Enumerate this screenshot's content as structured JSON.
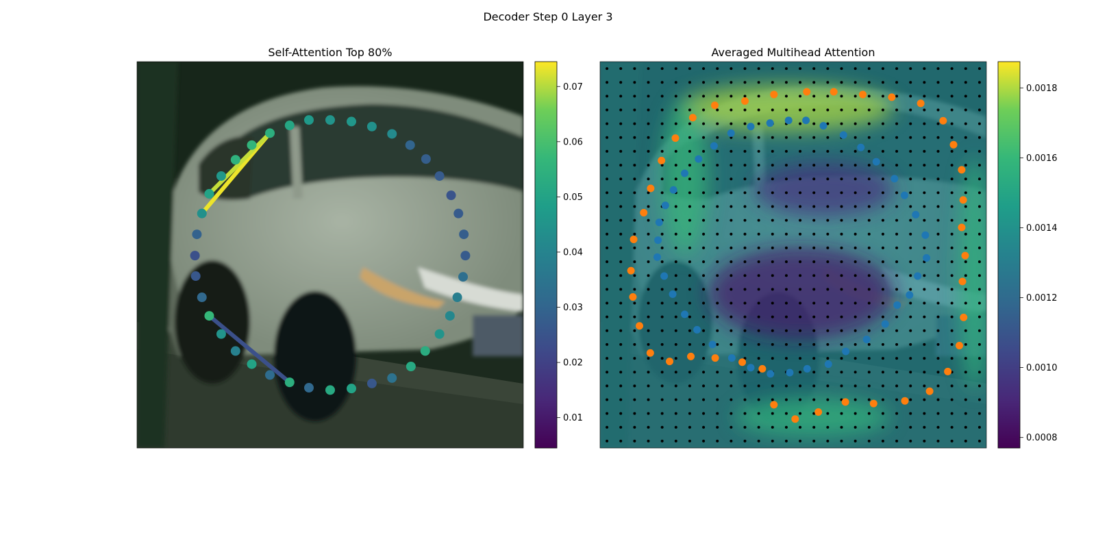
{
  "figure": {
    "title": "Decoder Step 0 Layer 3"
  },
  "chart_data": [
    {
      "type": "scatter",
      "title": "Self-Attention Top 80%",
      "background": "photo-car",
      "colormap": "viridis",
      "colorbar": {
        "range": [
          0.0045,
          0.0745
        ],
        "ticks": [
          0.01,
          0.02,
          0.03,
          0.04,
          0.05,
          0.06,
          0.07
        ],
        "tick_labels": [
          "0.01",
          "0.02",
          "0.03",
          "0.04",
          "0.05",
          "0.06",
          "0.07"
        ]
      },
      "xlim": [
        0,
        100
      ],
      "ylim": [
        100,
        0
      ],
      "points": [
        {
          "x": 50.0,
          "y": 15.1,
          "v": 0.045
        },
        {
          "x": 55.5,
          "y": 15.5,
          "v": 0.046
        },
        {
          "x": 60.8,
          "y": 16.8,
          "v": 0.044
        },
        {
          "x": 66.0,
          "y": 18.7,
          "v": 0.042
        },
        {
          "x": 70.7,
          "y": 21.6,
          "v": 0.03
        },
        {
          "x": 74.8,
          "y": 25.2,
          "v": 0.028
        },
        {
          "x": 78.3,
          "y": 29.6,
          "v": 0.027
        },
        {
          "x": 81.3,
          "y": 34.6,
          "v": 0.025
        },
        {
          "x": 83.2,
          "y": 39.3,
          "v": 0.027
        },
        {
          "x": 84.6,
          "y": 44.7,
          "v": 0.028
        },
        {
          "x": 85.0,
          "y": 50.2,
          "v": 0.027
        },
        {
          "x": 84.4,
          "y": 55.7,
          "v": 0.033
        },
        {
          "x": 82.9,
          "y": 61.0,
          "v": 0.038
        },
        {
          "x": 81.0,
          "y": 65.8,
          "v": 0.041
        },
        {
          "x": 78.3,
          "y": 70.5,
          "v": 0.045
        },
        {
          "x": 74.6,
          "y": 74.9,
          "v": 0.053
        },
        {
          "x": 70.9,
          "y": 78.9,
          "v": 0.052
        },
        {
          "x": 66.0,
          "y": 81.9,
          "v": 0.034
        },
        {
          "x": 60.8,
          "y": 83.3,
          "v": 0.026
        },
        {
          "x": 55.5,
          "y": 84.6,
          "v": 0.05
        },
        {
          "x": 50.0,
          "y": 85.0,
          "v": 0.052
        },
        {
          "x": 44.5,
          "y": 84.4,
          "v": 0.031
        },
        {
          "x": 39.5,
          "y": 83.0,
          "v": 0.054
        },
        {
          "x": 34.4,
          "y": 81.1,
          "v": 0.032
        },
        {
          "x": 29.7,
          "y": 78.3,
          "v": 0.05
        },
        {
          "x": 25.5,
          "y": 74.9,
          "v": 0.039
        },
        {
          "x": 21.8,
          "y": 70.5,
          "v": 0.045
        },
        {
          "x": 18.7,
          "y": 65.8,
          "v": 0.057
        },
        {
          "x": 16.8,
          "y": 61.0,
          "v": 0.031
        },
        {
          "x": 15.2,
          "y": 55.5,
          "v": 0.026
        },
        {
          "x": 15.0,
          "y": 50.2,
          "v": 0.024
        },
        {
          "x": 15.5,
          "y": 44.7,
          "v": 0.029
        },
        {
          "x": 16.8,
          "y": 39.3,
          "v": 0.044
        },
        {
          "x": 18.7,
          "y": 34.2,
          "v": 0.05
        },
        {
          "x": 21.8,
          "y": 29.6,
          "v": 0.046
        },
        {
          "x": 25.5,
          "y": 25.4,
          "v": 0.055
        },
        {
          "x": 29.7,
          "y": 21.6,
          "v": 0.056
        },
        {
          "x": 34.4,
          "y": 18.5,
          "v": 0.054
        },
        {
          "x": 39.5,
          "y": 16.5,
          "v": 0.051
        },
        {
          "x": 44.5,
          "y": 15.1,
          "v": 0.047
        }
      ],
      "links": [
        {
          "from": [
            34.4,
            18.5
          ],
          "to": [
            16.8,
            39.3
          ],
          "v": 0.0735
        },
        {
          "from": [
            34.4,
            18.5
          ],
          "to": [
            18.7,
            34.2
          ],
          "v": 0.071
        },
        {
          "from": [
            18.7,
            65.8
          ],
          "to": [
            39.5,
            83.0
          ],
          "v": 0.024
        }
      ]
    },
    {
      "type": "heatmap",
      "title": "Averaged Multihead Attention",
      "background": "photo-car",
      "colormap": "viridis",
      "colorbar": {
        "range": [
          0.00077,
          0.001875
        ],
        "ticks": [
          0.0008,
          0.001,
          0.0012,
          0.0014,
          0.0016,
          0.0018
        ],
        "tick_labels": [
          "0.0008",
          "0.0010",
          "0.0012",
          "0.0014",
          "0.0016",
          "0.0018"
        ]
      },
      "xlim": [
        0,
        100
      ],
      "ylim": [
        100,
        0
      ],
      "reference_grid": {
        "rows": 28,
        "cols": 28,
        "color": "#000000"
      },
      "heat_regions": [
        {
          "cx": 48,
          "cy": 12,
          "rx": 28,
          "ry": 6,
          "v": 0.0018
        },
        {
          "cx": 22,
          "cy": 30,
          "rx": 6,
          "ry": 20,
          "v": 0.0016
        },
        {
          "cx": 97,
          "cy": 55,
          "rx": 4,
          "ry": 30,
          "v": 0.00158
        },
        {
          "cx": 55,
          "cy": 92,
          "rx": 20,
          "ry": 5,
          "v": 0.00158
        },
        {
          "cx": 52,
          "cy": 60,
          "rx": 24,
          "ry": 12,
          "v": 0.00085
        },
        {
          "cx": 58,
          "cy": 33,
          "rx": 18,
          "ry": 7,
          "v": 0.00095
        }
      ],
      "series": [
        {
          "color": "#1f77b4",
          "points": [
            {
              "x": 53.3,
              "y": 15.2
            },
            {
              "x": 48.8,
              "y": 15.2
            },
            {
              "x": 44.0,
              "y": 15.9
            },
            {
              "x": 39.0,
              "y": 16.8
            },
            {
              "x": 33.9,
              "y": 18.5
            },
            {
              "x": 29.5,
              "y": 21.8
            },
            {
              "x": 25.5,
              "y": 25.2
            },
            {
              "x": 21.9,
              "y": 28.9
            },
            {
              "x": 19.0,
              "y": 33.2
            },
            {
              "x": 16.9,
              "y": 37.2
            },
            {
              "x": 15.3,
              "y": 41.6
            },
            {
              "x": 15.0,
              "y": 46.2
            },
            {
              "x": 14.8,
              "y": 50.6
            },
            {
              "x": 16.6,
              "y": 55.5
            },
            {
              "x": 18.8,
              "y": 60.2
            },
            {
              "x": 21.9,
              "y": 65.4
            },
            {
              "x": 25.1,
              "y": 69.4
            },
            {
              "x": 29.1,
              "y": 73.2
            },
            {
              "x": 34.1,
              "y": 76.7
            },
            {
              "x": 39.0,
              "y": 79.2
            },
            {
              "x": 44.1,
              "y": 80.8
            },
            {
              "x": 49.1,
              "y": 80.5
            },
            {
              "x": 53.6,
              "y": 79.5
            },
            {
              "x": 59.1,
              "y": 78.3
            },
            {
              "x": 63.6,
              "y": 75.0
            },
            {
              "x": 69.0,
              "y": 71.9
            },
            {
              "x": 73.8,
              "y": 67.9
            },
            {
              "x": 76.9,
              "y": 63.0
            },
            {
              "x": 80.1,
              "y": 60.4
            },
            {
              "x": 82.2,
              "y": 55.5
            },
            {
              "x": 84.5,
              "y": 50.8
            },
            {
              "x": 84.2,
              "y": 44.9
            },
            {
              "x": 81.7,
              "y": 39.6
            },
            {
              "x": 78.8,
              "y": 34.6
            },
            {
              "x": 76.2,
              "y": 30.3
            },
            {
              "x": 71.5,
              "y": 25.9
            },
            {
              "x": 67.5,
              "y": 22.2
            },
            {
              "x": 63.0,
              "y": 19.0
            },
            {
              "x": 57.8,
              "y": 16.6
            }
          ]
        },
        {
          "color": "#ff7f0e",
          "points": [
            {
              "x": 53.5,
              "y": 7.8
            },
            {
              "x": 60.5,
              "y": 7.8
            },
            {
              "x": 68.0,
              "y": 8.5
            },
            {
              "x": 75.5,
              "y": 9.2
            },
            {
              "x": 83.0,
              "y": 10.8
            },
            {
              "x": 88.8,
              "y": 15.3
            },
            {
              "x": 91.5,
              "y": 21.5
            },
            {
              "x": 93.6,
              "y": 28.0
            },
            {
              "x": 94.0,
              "y": 35.8
            },
            {
              "x": 93.6,
              "y": 42.9
            },
            {
              "x": 94.5,
              "y": 50.2
            },
            {
              "x": 93.8,
              "y": 56.9
            },
            {
              "x": 94.1,
              "y": 66.2
            },
            {
              "x": 93.0,
              "y": 73.5
            },
            {
              "x": 90.0,
              "y": 80.2
            },
            {
              "x": 85.3,
              "y": 85.3
            },
            {
              "x": 78.9,
              "y": 87.8
            },
            {
              "x": 70.8,
              "y": 88.5
            },
            {
              "x": 63.5,
              "y": 88.1
            },
            {
              "x": 56.5,
              "y": 90.7
            },
            {
              "x": 50.5,
              "y": 92.5
            },
            {
              "x": 45.0,
              "y": 88.8
            },
            {
              "x": 42.0,
              "y": 79.5
            },
            {
              "x": 36.8,
              "y": 77.8
            },
            {
              "x": 29.8,
              "y": 76.7
            },
            {
              "x": 23.5,
              "y": 76.3
            },
            {
              "x": 18.0,
              "y": 77.6
            },
            {
              "x": 13.0,
              "y": 75.4
            },
            {
              "x": 10.2,
              "y": 68.4
            },
            {
              "x": 8.5,
              "y": 60.9
            },
            {
              "x": 8.0,
              "y": 54.1
            },
            {
              "x": 8.7,
              "y": 46.0
            },
            {
              "x": 11.3,
              "y": 39.1
            },
            {
              "x": 13.1,
              "y": 32.8
            },
            {
              "x": 15.9,
              "y": 25.6
            },
            {
              "x": 19.5,
              "y": 19.8
            },
            {
              "x": 24.0,
              "y": 14.5
            },
            {
              "x": 29.7,
              "y": 11.3
            },
            {
              "x": 37.5,
              "y": 10.2
            },
            {
              "x": 45.0,
              "y": 8.5
            }
          ]
        }
      ]
    }
  ]
}
